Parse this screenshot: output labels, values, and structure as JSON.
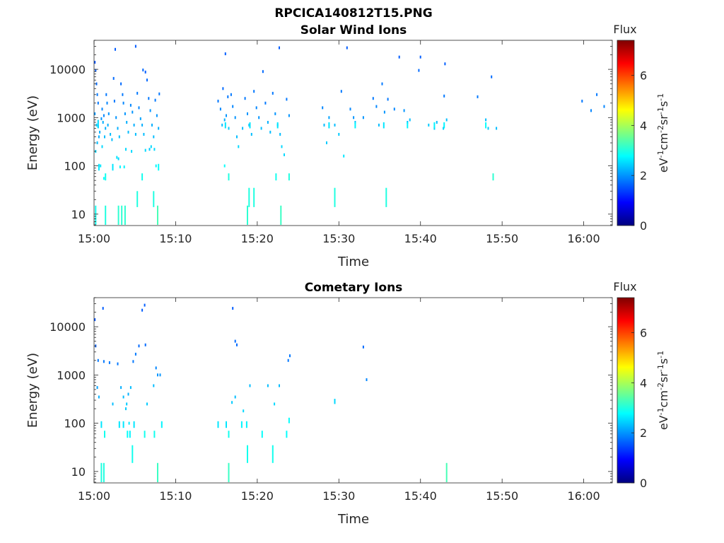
{
  "figure": {
    "title": "RPCICA140812T15.PNG"
  },
  "colormap": [
    "#00007f",
    "#0000ff",
    "#007fff",
    "#00ffff",
    "#7fff7f",
    "#ffff00",
    "#ff7f00",
    "#ff0000",
    "#7f0000"
  ],
  "chart_data": [
    {
      "type": "heatmap",
      "title": "Solar Wind Ions",
      "xlabel": "Time",
      "ylabel": "Energy (eV)",
      "x_ticks": [
        "15:00",
        "15:10",
        "15:20",
        "15:30",
        "15:40",
        "15:50",
        "16:00"
      ],
      "y_ticks": [
        "10",
        "100",
        "1000",
        "10000"
      ],
      "y_scale": "log",
      "x_range_minutes": [
        0,
        63.5
      ],
      "y_range_eV": [
        5.8,
        40000
      ],
      "colorbar": {
        "label": "Flux",
        "unit": "eV-1cm-2sr-1s-1",
        "range": [
          0,
          7.4
        ],
        "ticks": [
          "0",
          "2",
          "4",
          "6"
        ]
      },
      "points_time_min_energy_eV_flux": [
        [
          0.1,
          14000,
          1.5
        ],
        [
          0.2,
          9500,
          1.6
        ],
        [
          0.3,
          5000,
          1.7
        ],
        [
          0.4,
          3000,
          1.8
        ],
        [
          0.5,
          2000,
          1.8
        ],
        [
          0.1,
          1200,
          2.0
        ],
        [
          0.3,
          700,
          2.4
        ],
        [
          0.5,
          650,
          2.5
        ],
        [
          0.7,
          500,
          2.2
        ],
        [
          0.6,
          400,
          2.2
        ],
        [
          0.4,
          300,
          2.3
        ],
        [
          0.2,
          200,
          2.5
        ],
        [
          0.9,
          950,
          2.0
        ],
        [
          1.0,
          1500,
          1.9
        ],
        [
          1.2,
          1100,
          1.9
        ],
        [
          1.1,
          800,
          2.2
        ],
        [
          1.4,
          600,
          2.2
        ],
        [
          1.3,
          400,
          2.3
        ],
        [
          1.0,
          250,
          2.5
        ],
        [
          0.8,
          100,
          2.6
        ],
        [
          1.2,
          55,
          2.8
        ],
        [
          1.5,
          3000,
          1.8
        ],
        [
          1.6,
          2000,
          1.9
        ],
        [
          1.8,
          1200,
          2.0
        ],
        [
          1.7,
          700,
          2.2
        ],
        [
          2.0,
          450,
          2.3
        ],
        [
          2.2,
          350,
          2.3
        ],
        [
          2.4,
          6500,
          1.7
        ],
        [
          2.5,
          2200,
          1.8
        ],
        [
          2.7,
          1000,
          2.0
        ],
        [
          2.9,
          600,
          2.2
        ],
        [
          3.1,
          400,
          2.3
        ],
        [
          2.8,
          150,
          2.6
        ],
        [
          3.0,
          140,
          2.5
        ],
        [
          3.2,
          95,
          2.7
        ],
        [
          3.3,
          5000,
          1.7
        ],
        [
          3.5,
          3000,
          1.8
        ],
        [
          3.6,
          2000,
          1.9
        ],
        [
          3.8,
          1200,
          2.0
        ],
        [
          4.0,
          800,
          2.2
        ],
        [
          4.2,
          500,
          2.3
        ],
        [
          3.9,
          220,
          2.5
        ],
        [
          3.7,
          95,
          2.7
        ],
        [
          4.5,
          1800,
          1.9
        ],
        [
          4.7,
          1300,
          2.0
        ],
        [
          4.9,
          700,
          2.2
        ],
        [
          5.1,
          450,
          2.3
        ],
        [
          4.6,
          200,
          2.5
        ],
        [
          5.3,
          3200,
          1.8
        ],
        [
          5.5,
          1600,
          1.9
        ],
        [
          5.7,
          950,
          2.1
        ],
        [
          5.9,
          700,
          2.2
        ],
        [
          6.1,
          450,
          2.3
        ],
        [
          6.3,
          210,
          2.5
        ],
        [
          6.5,
          6000,
          1.7
        ],
        [
          6.7,
          2500,
          1.8
        ],
        [
          6.9,
          1400,
          2.0
        ],
        [
          7.1,
          700,
          2.2
        ],
        [
          7.3,
          400,
          2.3
        ],
        [
          7.0,
          250,
          2.5
        ],
        [
          6.8,
          220,
          2.4
        ],
        [
          7.5,
          2300,
          1.8
        ],
        [
          7.7,
          1100,
          2.0
        ],
        [
          7.9,
          600,
          2.2
        ],
        [
          7.6,
          100,
          2.7
        ],
        [
          8.0,
          3100,
          1.8
        ],
        [
          7.4,
          220,
          2.5
        ],
        [
          2.6,
          26000,
          1.6
        ],
        [
          5.1,
          30000,
          1.6
        ],
        [
          6.0,
          9700,
          1.7
        ],
        [
          6.3,
          8800,
          1.6
        ],
        [
          15.2,
          2200,
          1.8
        ],
        [
          15.5,
          1500,
          1.9
        ],
        [
          15.7,
          700,
          2.3
        ],
        [
          16.0,
          900,
          2.2
        ],
        [
          16.2,
          1100,
          2.0
        ],
        [
          16.5,
          600,
          2.4
        ],
        [
          16.8,
          3000,
          1.8
        ],
        [
          17.0,
          1700,
          1.9
        ],
        [
          17.3,
          1000,
          2.0
        ],
        [
          17.5,
          400,
          2.3
        ],
        [
          17.7,
          250,
          2.5
        ],
        [
          15.8,
          4000,
          1.7
        ],
        [
          16.1,
          21000,
          1.6
        ],
        [
          16.4,
          2700,
          1.8
        ],
        [
          18.2,
          600,
          2.3
        ],
        [
          18.5,
          2500,
          1.8
        ],
        [
          18.8,
          1200,
          2.0
        ],
        [
          19.0,
          700,
          2.3
        ],
        [
          19.3,
          450,
          2.3
        ],
        [
          19.6,
          3500,
          1.8
        ],
        [
          19.9,
          1600,
          1.9
        ],
        [
          20.2,
          1000,
          2.0
        ],
        [
          20.5,
          600,
          2.3
        ],
        [
          20.7,
          9000,
          1.7
        ],
        [
          21.0,
          2000,
          1.8
        ],
        [
          21.3,
          800,
          2.2
        ],
        [
          21.6,
          500,
          2.3
        ],
        [
          21.9,
          3200,
          1.8
        ],
        [
          22.2,
          1200,
          2.0
        ],
        [
          22.5,
          700,
          2.3
        ],
        [
          22.8,
          450,
          2.3
        ],
        [
          23.0,
          250,
          2.5
        ],
        [
          23.3,
          170,
          2.5
        ],
        [
          23.6,
          2400,
          1.8
        ],
        [
          23.9,
          1100,
          2.0
        ],
        [
          22.7,
          28000,
          1.6
        ],
        [
          16.0,
          100,
          2.8
        ],
        [
          16.5,
          55,
          3.0
        ],
        [
          28.0,
          1600,
          1.9
        ],
        [
          28.2,
          700,
          2.3
        ],
        [
          28.5,
          300,
          2.4
        ],
        [
          28.8,
          1000,
          2.1
        ],
        [
          29.5,
          700,
          2.3
        ],
        [
          30.0,
          450,
          2.4
        ],
        [
          30.3,
          3500,
          1.8
        ],
        [
          30.6,
          160,
          2.6
        ],
        [
          31.0,
          28000,
          1.6
        ],
        [
          31.4,
          1500,
          1.9
        ],
        [
          31.8,
          1000,
          2.0
        ],
        [
          32.0,
          800,
          2.3
        ],
        [
          33.0,
          1000,
          2.0
        ],
        [
          34.2,
          2500,
          1.8
        ],
        [
          34.6,
          1700,
          1.9
        ],
        [
          34.9,
          700,
          2.3
        ],
        [
          35.3,
          5000,
          1.8
        ],
        [
          35.6,
          1300,
          2.0
        ],
        [
          36.0,
          2400,
          1.8
        ],
        [
          36.8,
          1500,
          1.9
        ],
        [
          37.4,
          18000,
          1.6
        ],
        [
          38.0,
          1400,
          2.0
        ],
        [
          38.4,
          800,
          2.3
        ],
        [
          38.7,
          900,
          2.3
        ],
        [
          40.0,
          18000,
          1.6
        ],
        [
          39.8,
          9500,
          1.7
        ],
        [
          41.0,
          700,
          2.4
        ],
        [
          41.7,
          600,
          2.4
        ],
        [
          42.0,
          800,
          2.3
        ],
        [
          42.8,
          600,
          2.4
        ],
        [
          43.0,
          13000,
          1.6
        ],
        [
          42.9,
          2800,
          1.8
        ],
        [
          43.2,
          900,
          2.3
        ],
        [
          47.0,
          2700,
          1.8
        ],
        [
          48.0,
          900,
          2.3
        ],
        [
          48.3,
          600,
          2.4
        ],
        [
          48.7,
          7000,
          1.7
        ],
        [
          49.3,
          600,
          2.3
        ],
        [
          59.8,
          2200,
          1.8
        ],
        [
          60.9,
          1400,
          1.9
        ],
        [
          61.6,
          3000,
          1.8
        ],
        [
          62.5,
          1700,
          1.9
        ]
      ],
      "streaks_time_min_energy_low_high_eV_flux": [
        [
          0.2,
          6,
          15,
          2.9
        ],
        [
          1.4,
          6,
          15,
          3.0
        ],
        [
          3.0,
          6,
          15,
          3.1
        ],
        [
          3.4,
          6,
          15,
          3.1
        ],
        [
          3.8,
          6,
          15,
          3.1
        ],
        [
          7.8,
          6,
          15,
          3.3
        ],
        [
          5.3,
          14,
          30,
          3.0
        ],
        [
          7.3,
          14,
          30,
          3.0
        ],
        [
          1.4,
          50,
          70,
          2.9
        ],
        [
          5.9,
          50,
          70,
          2.9
        ],
        [
          7.9,
          80,
          110,
          2.8
        ],
        [
          2.3,
          80,
          110,
          2.6
        ],
        [
          0.6,
          80,
          110,
          2.6
        ],
        [
          0.5,
          600,
          900,
          2.5
        ],
        [
          18.8,
          6,
          15,
          3.1
        ],
        [
          22.9,
          6,
          15,
          3.2
        ],
        [
          19.0,
          14,
          35,
          3.0
        ],
        [
          19.6,
          14,
          35,
          3.0
        ],
        [
          29.5,
          14,
          35,
          3.0
        ],
        [
          35.8,
          14,
          35,
          3.0
        ],
        [
          16.5,
          50,
          70,
          3.0
        ],
        [
          22.3,
          50,
          70,
          2.9
        ],
        [
          23.9,
          50,
          70,
          3.0
        ],
        [
          48.9,
          50,
          70,
          3.1
        ],
        [
          16.1,
          600,
          800,
          2.6
        ],
        [
          19.1,
          600,
          800,
          2.6
        ],
        [
          22.5,
          600,
          800,
          2.6
        ],
        [
          28.8,
          600,
          800,
          2.6
        ],
        [
          32.0,
          600,
          800,
          2.7
        ],
        [
          35.5,
          600,
          800,
          2.6
        ],
        [
          38.4,
          600,
          800,
          2.7
        ],
        [
          41.7,
          600,
          800,
          2.7
        ],
        [
          42.9,
          600,
          800,
          2.7
        ],
        [
          48.0,
          600,
          800,
          2.8
        ]
      ]
    },
    {
      "type": "heatmap",
      "title": "Cometary Ions",
      "xlabel": "Time",
      "ylabel": "Energy (eV)",
      "x_ticks": [
        "15:00",
        "15:10",
        "15:20",
        "15:30",
        "15:40",
        "15:50",
        "16:00"
      ],
      "y_ticks": [
        "10",
        "100",
        "1000",
        "10000"
      ],
      "y_scale": "log",
      "x_range_minutes": [
        0,
        63.5
      ],
      "y_range_eV": [
        5.8,
        40000
      ],
      "colorbar": {
        "label": "Flux",
        "unit": "eV-1cm-2sr-1s-1",
        "range": [
          0,
          7.4
        ],
        "ticks": [
          "0",
          "2",
          "4",
          "6"
        ]
      },
      "points_time_min_energy_eV_flux": [
        [
          0.1,
          14000,
          1.5
        ],
        [
          0.2,
          4000,
          1.6
        ],
        [
          0.4,
          550,
          2.1
        ],
        [
          0.6,
          350,
          2.2
        ],
        [
          0.5,
          2000,
          1.8
        ],
        [
          1.1,
          24000,
          1.6
        ],
        [
          1.2,
          1900,
          1.8
        ],
        [
          1.9,
          1800,
          1.8
        ],
        [
          2.3,
          250,
          2.3
        ],
        [
          2.9,
          1700,
          1.8
        ],
        [
          3.3,
          550,
          2.2
        ],
        [
          3.6,
          350,
          2.3
        ],
        [
          3.9,
          200,
          2.4
        ],
        [
          4.2,
          400,
          2.2
        ],
        [
          4.5,
          550,
          2.3
        ],
        [
          4.0,
          250,
          2.4
        ],
        [
          4.3,
          100,
          2.6
        ],
        [
          4.8,
          1900,
          1.8
        ],
        [
          5.1,
          2700,
          1.8
        ],
        [
          5.5,
          4000,
          1.7
        ],
        [
          5.9,
          22000,
          1.6
        ],
        [
          6.2,
          28000,
          1.6
        ],
        [
          6.3,
          4200,
          1.7
        ],
        [
          6.5,
          250,
          2.4
        ],
        [
          7.3,
          600,
          2.3
        ],
        [
          7.6,
          1400,
          1.9
        ],
        [
          7.8,
          1000,
          2.0
        ],
        [
          8.1,
          1000,
          2.0
        ],
        [
          17.0,
          24000,
          1.6
        ],
        [
          17.3,
          5000,
          1.7
        ],
        [
          17.5,
          4200,
          1.7
        ],
        [
          16.9,
          270,
          2.4
        ],
        [
          17.3,
          350,
          2.3
        ],
        [
          18.3,
          180,
          2.5
        ],
        [
          19.1,
          600,
          2.3
        ],
        [
          21.3,
          600,
          2.3
        ],
        [
          22.7,
          600,
          2.3
        ],
        [
          22.1,
          250,
          2.5
        ],
        [
          23.8,
          2000,
          1.8
        ],
        [
          24.0,
          2500,
          1.8
        ],
        [
          29.5,
          280,
          2.4
        ],
        [
          33.0,
          3800,
          1.7
        ],
        [
          33.4,
          800,
          1.9
        ]
      ],
      "streaks_time_min_energy_low_high_eV_flux": [
        [
          0.9,
          6,
          15,
          3.0
        ],
        [
          1.2,
          6,
          15,
          3.0
        ],
        [
          7.8,
          6,
          15,
          3.2
        ],
        [
          16.5,
          6,
          15,
          3.2
        ],
        [
          43.2,
          6,
          15,
          3.3
        ],
        [
          4.7,
          15,
          35,
          2.9
        ],
        [
          18.8,
          15,
          35,
          2.9
        ],
        [
          21.9,
          15,
          35,
          2.9
        ],
        [
          1.3,
          50,
          70,
          2.9
        ],
        [
          4.1,
          50,
          70,
          2.8
        ],
        [
          4.4,
          50,
          70,
          2.7
        ],
        [
          6.2,
          50,
          70,
          2.9
        ],
        [
          7.4,
          50,
          70,
          2.9
        ],
        [
          16.5,
          50,
          70,
          2.9
        ],
        [
          20.6,
          50,
          70,
          2.8
        ],
        [
          23.6,
          50,
          70,
          2.8
        ],
        [
          0.9,
          80,
          110,
          2.6
        ],
        [
          3.1,
          80,
          110,
          2.6
        ],
        [
          3.6,
          80,
          110,
          2.6
        ],
        [
          4.9,
          80,
          110,
          2.6
        ],
        [
          8.3,
          80,
          110,
          2.7
        ],
        [
          15.2,
          80,
          110,
          2.6
        ],
        [
          16.2,
          80,
          110,
          2.6
        ],
        [
          18.1,
          80,
          110,
          2.7
        ],
        [
          18.7,
          80,
          110,
          2.7
        ],
        [
          23.9,
          100,
          130,
          2.8
        ],
        [
          29.5,
          250,
          320,
          2.5
        ]
      ]
    }
  ]
}
